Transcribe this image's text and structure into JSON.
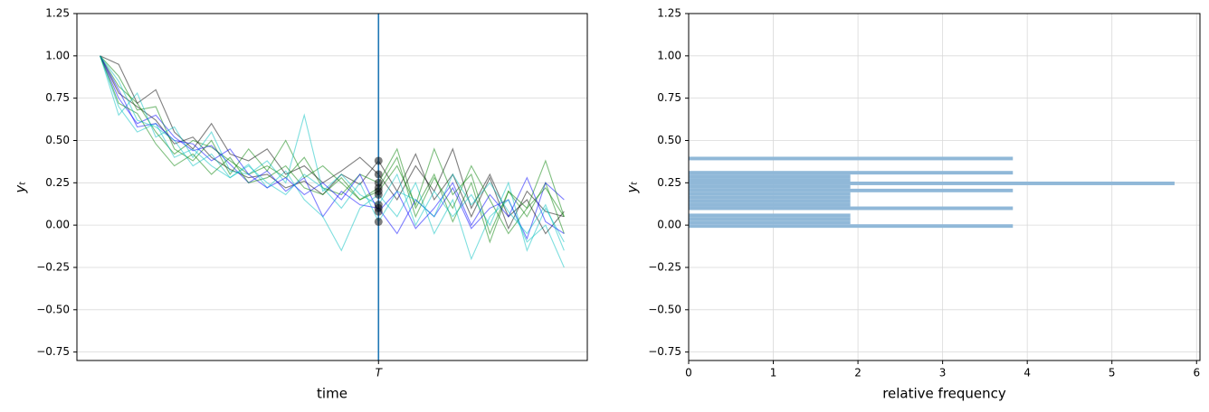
{
  "chart_data": [
    {
      "type": "line",
      "xlabel": "time",
      "ylabel": "yₜ",
      "x": [
        0,
        2,
        4,
        6,
        8,
        10,
        12,
        14,
        16,
        18,
        20,
        22,
        24,
        26,
        28,
        30,
        32,
        34,
        36,
        38,
        40,
        42,
        44,
        46,
        48,
        50
      ],
      "xlim": [
        -2.5,
        52.5
      ],
      "ylim": [
        -0.8,
        1.25
      ],
      "xticks": [
        {
          "value": 30,
          "label": "T"
        }
      ],
      "vline_color": "#1f77b4",
      "marker_color": "#000000",
      "yticks": [
        {
          "value": -0.75,
          "label": "−0.75"
        },
        {
          "value": -0.5,
          "label": "−0.50"
        },
        {
          "value": -0.25,
          "label": "−0.25"
        },
        {
          "value": 0,
          "label": "0.00"
        },
        {
          "value": 0.25,
          "label": "0.25"
        },
        {
          "value": 0.5,
          "label": "0.50"
        },
        {
          "value": 0.75,
          "label": "0.75"
        },
        {
          "value": 1,
          "label": "1.00"
        },
        {
          "value": 1.25,
          "label": "1.25"
        }
      ],
      "ygrid": true,
      "xgrid": false,
      "series": [
        {
          "color": "#000000",
          "values": [
            1.0,
            0.78,
            0.7,
            0.62,
            0.48,
            0.52,
            0.4,
            0.33,
            0.28,
            0.3,
            0.22,
            0.26,
            0.18,
            0.3,
            0.24,
            0.38,
            0.2,
            0.42,
            0.15,
            0.3,
            0.05,
            0.28,
            -0.02,
            0.2,
            0.08,
            0.05
          ]
        },
        {
          "color": "#008000",
          "values": [
            1.0,
            0.82,
            0.72,
            0.55,
            0.42,
            0.5,
            0.46,
            0.38,
            0.3,
            0.35,
            0.28,
            0.4,
            0.22,
            0.18,
            0.3,
            0.25,
            0.45,
            0.1,
            0.3,
            0.02,
            0.25,
            -0.1,
            0.2,
            0.05,
            0.25,
            -0.05
          ]
        },
        {
          "color": "#0000ff",
          "values": [
            1.0,
            0.75,
            0.6,
            0.65,
            0.52,
            0.44,
            0.47,
            0.36,
            0.25,
            0.32,
            0.2,
            0.28,
            0.05,
            0.2,
            0.12,
            0.1,
            -0.05,
            0.15,
            0.05,
            0.22,
            -0.02,
            0.1,
            0.15,
            -0.08,
            0.25,
            0.15
          ]
        },
        {
          "color": "#00bfbf",
          "values": [
            1.0,
            0.7,
            0.55,
            0.6,
            0.4,
            0.45,
            0.35,
            0.28,
            0.36,
            0.22,
            0.32,
            0.15,
            0.05,
            -0.15,
            0.1,
            0.18,
            0.05,
            0.25,
            -0.05,
            0.15,
            -0.2,
            0.05,
            0.15,
            -0.1,
            0.0,
            -0.25
          ]
        },
        {
          "color": "#000000",
          "values": [
            1.0,
            0.95,
            0.72,
            0.8,
            0.55,
            0.45,
            0.6,
            0.42,
            0.38,
            0.45,
            0.3,
            0.35,
            0.25,
            0.32,
            0.4,
            0.3,
            0.15,
            0.35,
            0.2,
            0.45,
            0.1,
            0.3,
            0.05,
            0.15,
            -0.05,
            0.08
          ]
        },
        {
          "color": "#008000",
          "values": [
            1.0,
            0.88,
            0.68,
            0.7,
            0.45,
            0.38,
            0.5,
            0.3,
            0.45,
            0.32,
            0.5,
            0.28,
            0.35,
            0.25,
            0.15,
            0.22,
            0.4,
            0.05,
            0.28,
            0.1,
            0.35,
            0.15,
            -0.05,
            0.1,
            0.22,
            0.05
          ]
        },
        {
          "color": "#00bfbf",
          "values": [
            1.0,
            0.65,
            0.78,
            0.52,
            0.58,
            0.4,
            0.55,
            0.32,
            0.3,
            0.38,
            0.25,
            0.65,
            0.2,
            0.3,
            0.18,
            0.12,
            0.3,
            0.0,
            0.2,
            0.05,
            0.18,
            0.0,
            0.25,
            -0.15,
            0.1,
            -0.1
          ]
        },
        {
          "color": "#0000ff",
          "values": [
            1.0,
            0.8,
            0.58,
            0.6,
            0.5,
            0.48,
            0.38,
            0.45,
            0.3,
            0.22,
            0.28,
            0.18,
            0.25,
            0.15,
            0.3,
            0.08,
            0.2,
            -0.02,
            0.1,
            0.25,
            0.0,
            0.18,
            0.05,
            0.28,
            0.02,
            -0.05
          ]
        },
        {
          "color": "#008000",
          "values": [
            1.0,
            0.72,
            0.66,
            0.48,
            0.35,
            0.42,
            0.3,
            0.4,
            0.25,
            0.28,
            0.35,
            0.22,
            0.18,
            0.28,
            0.15,
            0.2,
            0.35,
            0.12,
            0.45,
            0.18,
            0.3,
            -0.05,
            0.2,
            0.1,
            0.38,
            0.05
          ]
        },
        {
          "color": "#00bfbf",
          "values": [
            1.0,
            0.85,
            0.62,
            0.58,
            0.5,
            0.35,
            0.42,
            0.28,
            0.35,
            0.25,
            0.18,
            0.3,
            0.22,
            0.1,
            0.25,
            0.02,
            0.2,
            0.15,
            0.05,
            0.3,
            0.12,
            0.25,
            0.08,
            -0.05,
            0.12,
            -0.15
          ]
        }
      ]
    },
    {
      "type": "histogram",
      "orientation": "horizontal",
      "xlabel": "relative frequency",
      "ylabel": "yₜ",
      "bins": [
        -0.016,
        0.005,
        0.026,
        0.047,
        0.068,
        0.089,
        0.11,
        0.131,
        0.152,
        0.173,
        0.194,
        0.215,
        0.236,
        0.257,
        0.278,
        0.299,
        0.32,
        0.341,
        0.362,
        0.383,
        0.404
      ],
      "values": [
        3.83,
        1.91,
        1.91,
        1.91,
        0,
        3.83,
        1.91,
        1.91,
        1.91,
        1.91,
        3.83,
        1.91,
        5.74,
        1.91,
        1.91,
        3.83,
        0,
        0,
        0,
        3.83
      ],
      "color": "#90b8d8",
      "xlim": [
        0,
        6.04
      ],
      "ylim": [
        -0.8,
        1.25
      ],
      "xticks": [
        0,
        1,
        2,
        3,
        4,
        5,
        6
      ],
      "yticks": [
        {
          "value": -0.75,
          "label": "−0.75"
        },
        {
          "value": -0.5,
          "label": "−0.50"
        },
        {
          "value": -0.25,
          "label": "−0.25"
        },
        {
          "value": 0,
          "label": "0.00"
        },
        {
          "value": 0.25,
          "label": "0.25"
        },
        {
          "value": 0.5,
          "label": "0.50"
        },
        {
          "value": 0.75,
          "label": "0.75"
        },
        {
          "value": 1,
          "label": "1.00"
        },
        {
          "value": 1.25,
          "label": "1.25"
        }
      ],
      "ygrid": true,
      "xgrid": true
    }
  ]
}
